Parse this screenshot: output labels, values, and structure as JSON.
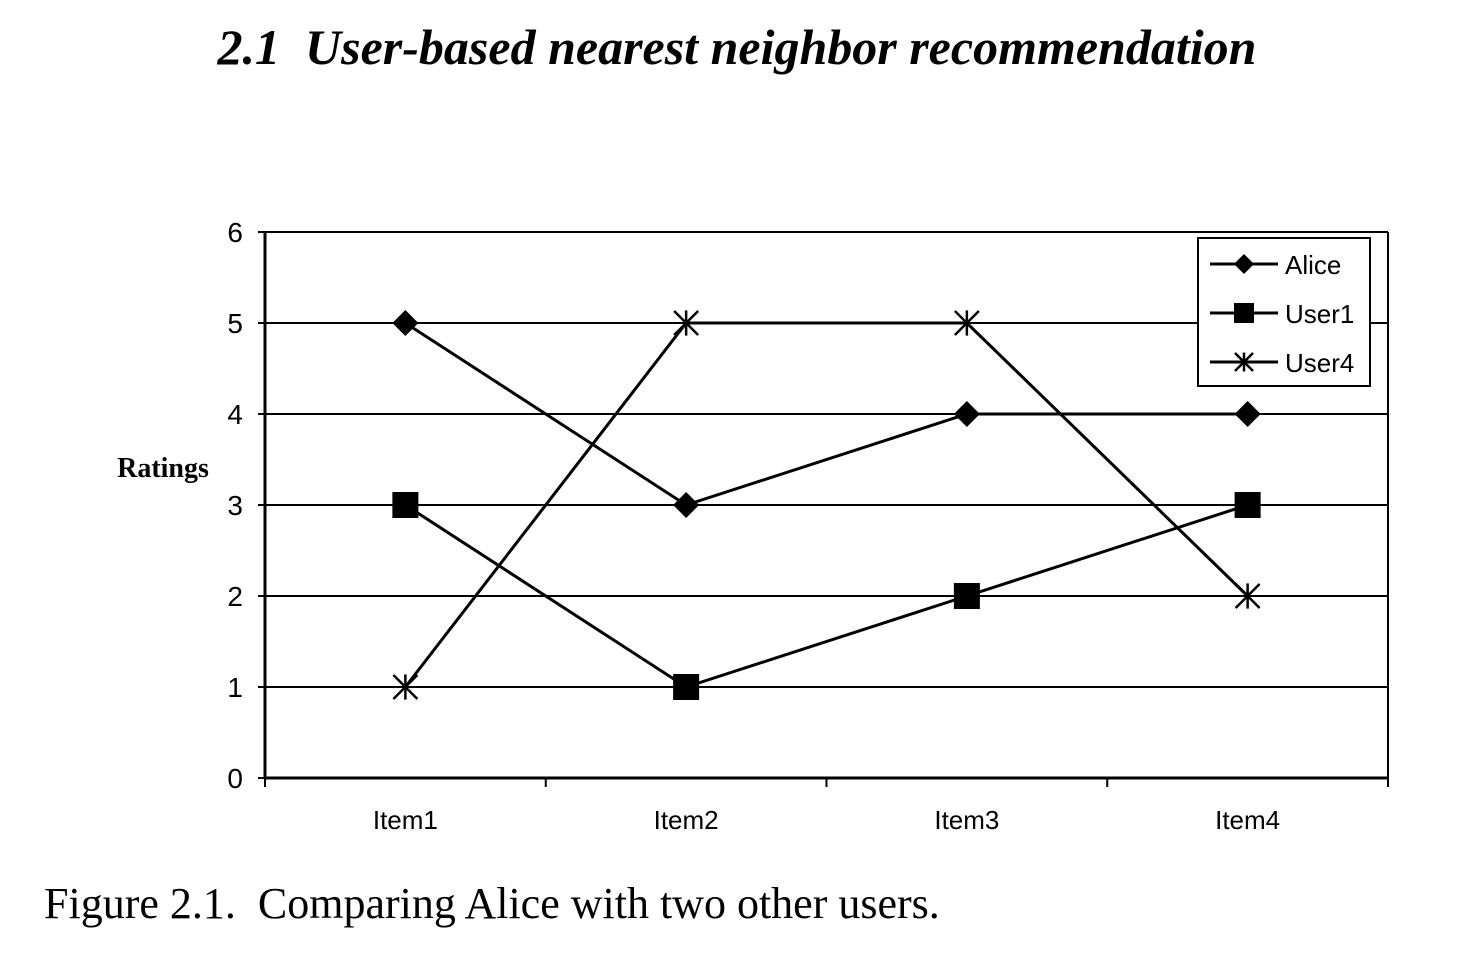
{
  "page": {
    "section_number": "2.1",
    "section_title": "User-based nearest neighbor recommendation",
    "caption_label": "Figure 2.1.",
    "caption_text": "Comparing Alice with two other users."
  },
  "chart_data": {
    "type": "line",
    "title": "",
    "xlabel": "",
    "ylabel": "Ratings",
    "categories": [
      "Item1",
      "Item2",
      "Item3",
      "Item4"
    ],
    "y_ticks": [
      "0",
      "1",
      "2",
      "3",
      "4",
      "5",
      "6"
    ],
    "ylim": [
      0,
      6
    ],
    "grid": true,
    "legend_position": "top-right",
    "series": [
      {
        "name": "Alice",
        "marker": "diamond",
        "values": [
          5,
          3,
          4,
          4
        ]
      },
      {
        "name": "User1",
        "marker": "square",
        "values": [
          3,
          1,
          2,
          3
        ]
      },
      {
        "name": "User4",
        "marker": "star",
        "values": [
          1,
          5,
          5,
          2
        ]
      }
    ],
    "line_color": "#000000"
  }
}
